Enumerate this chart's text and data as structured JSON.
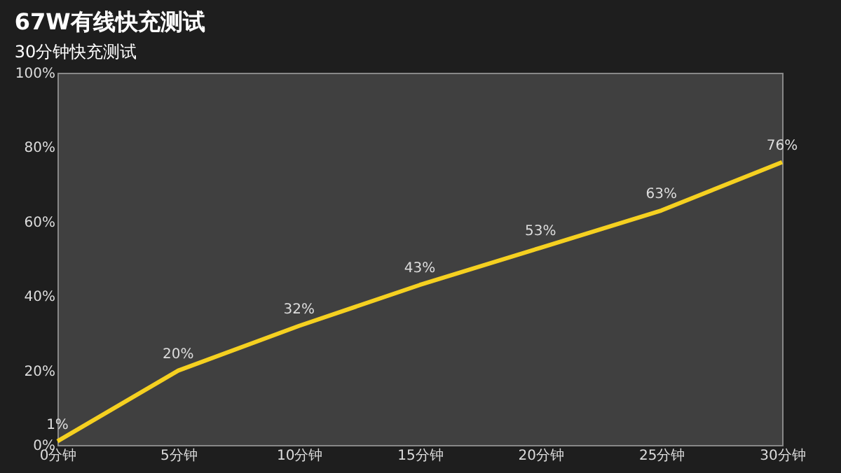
{
  "chart_data": {
    "type": "line",
    "title": "67W有线快充测试",
    "subtitle": "30分钟快充测试",
    "categories": [
      "0分钟",
      "5分钟",
      "10分钟",
      "15分钟",
      "20分钟",
      "25分钟",
      "30分钟"
    ],
    "series": [
      {
        "color": "#f5d020",
        "values": [
          1,
          20,
          32,
          43,
          53,
          63,
          76
        ],
        "value_labels": [
          "1%",
          "20%",
          "32%",
          "43%",
          "53%",
          "63%",
          "76%"
        ]
      }
    ],
    "ylim": [
      0,
      100
    ],
    "yticks": [
      {
        "value": 0,
        "label": "0%"
      },
      {
        "value": 20,
        "label": "20%"
      },
      {
        "value": 40,
        "label": "40%"
      },
      {
        "value": 60,
        "label": "60%"
      },
      {
        "value": 80,
        "label": "80%"
      },
      {
        "value": 100,
        "label": "100%"
      }
    ],
    "grid": false,
    "marker": "none",
    "line_style": "solid"
  }
}
